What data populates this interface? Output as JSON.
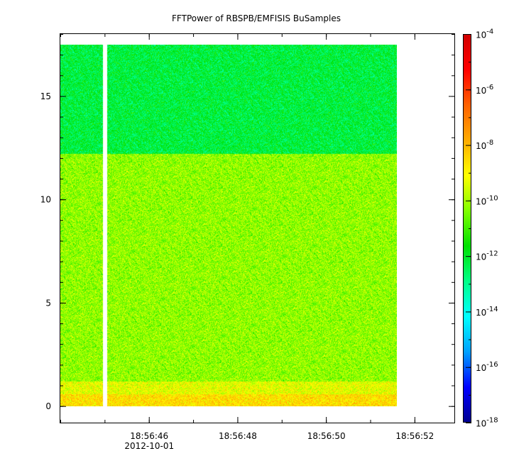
{
  "chart_data": {
    "type": "heatmap",
    "title": "FFTPower of RBSPB/EMFISIS  BuSamples",
    "xlabel": "",
    "ylabel": "",
    "x_range": [
      "18:56:44.0",
      "18:56:52.9"
    ],
    "y_range": [
      -0.8,
      18.0
    ],
    "x_ticks_major": [
      {
        "label": "18:56:46",
        "date_label": "2012-10-01",
        "seconds": 46
      },
      {
        "label": "18:56:48",
        "date_label": "",
        "seconds": 48
      },
      {
        "label": "18:56:50",
        "date_label": "",
        "seconds": 50
      },
      {
        "label": "18:56:52",
        "date_label": "",
        "seconds": 52
      }
    ],
    "y_ticks": [
      {
        "label": "0",
        "value": 0
      },
      {
        "label": "5",
        "value": 5
      },
      {
        "label": "10",
        "value": 10
      },
      {
        "label": "15",
        "value": 15
      }
    ],
    "data_extent": {
      "t_start": "18:56:44.0",
      "t_end": "18:56:51.6",
      "f_min": 0,
      "f_max": 17.5
    },
    "gap": {
      "t_start": "18:56:44.95",
      "t_end": "18:56:45.05"
    },
    "bands": [
      {
        "f_from": 0.0,
        "f_to": 0.6,
        "log_power": -8.6
      },
      {
        "f_from": 0.6,
        "f_to": 1.2,
        "log_power": -9.3
      },
      {
        "f_from": 1.2,
        "f_to": 12.2,
        "log_power": -10.2
      },
      {
        "f_from": 12.2,
        "f_to": 17.5,
        "log_power": -12.2
      }
    ],
    "colorbar": {
      "scale": "log",
      "range_exponent": [
        -18,
        -4
      ],
      "tick_exponents": [
        -4,
        -6,
        -8,
        -10,
        -12,
        -14,
        -16,
        -18
      ],
      "tick_base": "10",
      "placement": "right",
      "colors": [
        "#00008f",
        "#0000ff",
        "#00a0ff",
        "#00ffff",
        "#00ff88",
        "#00e000",
        "#80ff00",
        "#ffff00",
        "#ffaa00",
        "#ff6000",
        "#ff0000",
        "#d00000"
      ]
    },
    "grid": false
  }
}
